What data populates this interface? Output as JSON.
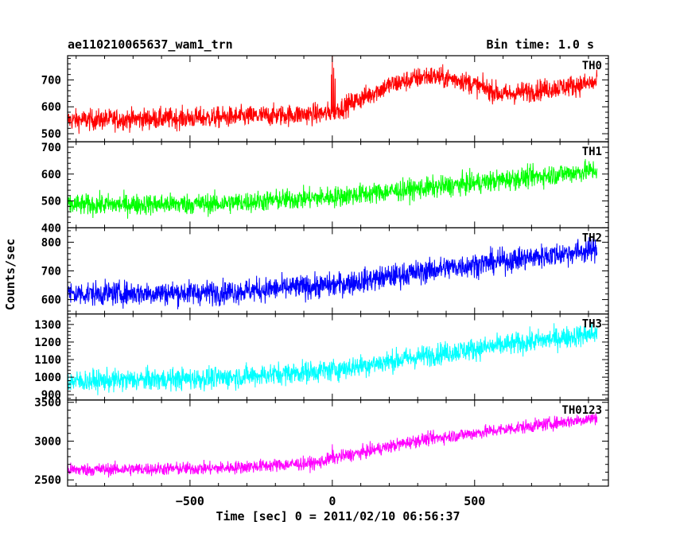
{
  "chart_data": {
    "type": "line",
    "title_left": "ae110210065637_wam1_trn",
    "title_right": "Bin time: 1.0 s",
    "ylabel": "Counts/sec",
    "xlabel": "Time [sec] 0 = 2011/02/10 06:56:37",
    "xlim": [
      -930,
      970
    ],
    "xticks": [
      -500,
      0,
      500
    ],
    "xtick_labels": [
      "−500",
      "0",
      "500"
    ],
    "panels": [
      {
        "name": "TH0",
        "color": "#ff0000",
        "ylim": [
          470,
          790
        ],
        "yticks": [
          500,
          600,
          700
        ],
        "ytick_labels": [
          "500",
          "600",
          "700"
        ],
        "trend": [
          [
            -930,
            550
          ],
          [
            -400,
            560
          ],
          [
            -20,
            575
          ],
          [
            30,
            595
          ],
          [
            200,
            680
          ],
          [
            330,
            715
          ],
          [
            450,
            700
          ],
          [
            600,
            645
          ],
          [
            780,
            670
          ],
          [
            930,
            690
          ]
        ],
        "noise": 28,
        "spikes": [
          [
            0,
            790
          ],
          [
            5,
            745
          ],
          [
            -3,
            720
          ],
          [
            10,
            705
          ]
        ]
      },
      {
        "name": "TH1",
        "color": "#00ff00",
        "ylim": [
          400,
          720
        ],
        "yticks": [
          400,
          500,
          600,
          700
        ],
        "ytick_labels": [
          "400",
          "500",
          "600",
          "700"
        ],
        "trend": [
          [
            -930,
            485
          ],
          [
            -400,
            490
          ],
          [
            0,
            515
          ],
          [
            400,
            555
          ],
          [
            930,
            615
          ]
        ],
        "noise": 28,
        "spikes": []
      },
      {
        "name": "TH2",
        "color": "#0000ff",
        "ylim": [
          550,
          850
        ],
        "yticks": [
          600,
          700,
          800
        ],
        "ytick_labels": [
          "600",
          "700",
          "800"
        ],
        "trend": [
          [
            -930,
            620
          ],
          [
            -400,
            625
          ],
          [
            0,
            650
          ],
          [
            400,
            710
          ],
          [
            930,
            775
          ]
        ],
        "noise": 30,
        "spikes": []
      },
      {
        "name": "TH3",
        "color": "#00ffff",
        "ylim": [
          870,
          1360
        ],
        "yticks": [
          900,
          1000,
          1100,
          1200,
          1300
        ],
        "ytick_labels": [
          "900",
          "1000",
          "1100",
          "1200",
          "1300"
        ],
        "trend": [
          [
            -930,
            975
          ],
          [
            -400,
            995
          ],
          [
            0,
            1040
          ],
          [
            400,
            1140
          ],
          [
            930,
            1250
          ]
        ],
        "noise": 45,
        "spikes": []
      },
      {
        "name": "TH0123",
        "color": "#ff00ff",
        "ylim": [
          2420,
          3530
        ],
        "yticks": [
          2500,
          3000,
          3500
        ],
        "ytick_labels": [
          "2500",
          "3000",
          "3500"
        ],
        "trend": [
          [
            -930,
            2630
          ],
          [
            -400,
            2650
          ],
          [
            -50,
            2720
          ],
          [
            0,
            2780
          ],
          [
            100,
            2850
          ],
          [
            300,
            3010
          ],
          [
            600,
            3150
          ],
          [
            930,
            3300
          ]
        ],
        "noise": 60,
        "spikes": [
          [
            0,
            2960
          ]
        ]
      }
    ],
    "x_data_range": [
      -930,
      930
    ]
  }
}
